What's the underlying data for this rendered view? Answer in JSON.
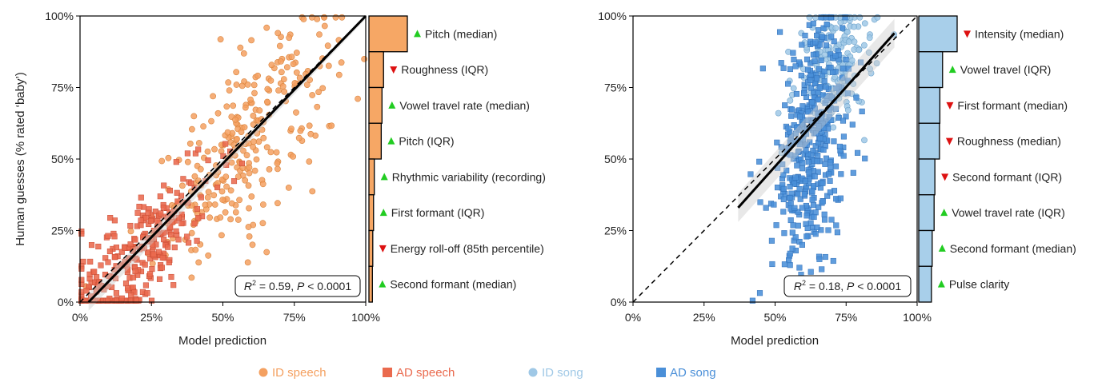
{
  "chart_data": [
    {
      "type": "scatter",
      "xlabel": "Model prediction",
      "ylabel": "Human guesses (% rated ‘baby’)",
      "xlim": [
        0,
        100
      ],
      "ylim": [
        0,
        100
      ],
      "x_ticks": [
        "0%",
        "25%",
        "50%",
        "75%",
        "100%"
      ],
      "y_ticks": [
        "0%",
        "25%",
        "50%",
        "75%",
        "100%"
      ],
      "identity_line": true,
      "fit_line": {
        "x": [
          3,
          100
        ],
        "y": [
          0,
          102
        ]
      },
      "stat": {
        "r2_label": "R",
        "r2_value": "= 0.59,",
        "p_label": "P",
        "p_value": "< 0.0001"
      },
      "series": [
        {
          "name": "ID speech",
          "marker": "circle",
          "color": "#f4a060",
          "stroke": "#d9843d",
          "x_mean": 58,
          "x_sd": 16,
          "slope": 1.0,
          "intercept": -2,
          "noise": 15,
          "count": 280
        },
        {
          "name": "AD speech",
          "marker": "square",
          "color": "#ea6a4e",
          "stroke": "#c84b32",
          "x_mean": 22,
          "x_sd": 13,
          "slope": 0.9,
          "intercept": -3,
          "noise": 10,
          "count": 300
        }
      ],
      "features": [
        {
          "label": "Pitch (median)",
          "direction": "up",
          "importance": 1.0
        },
        {
          "label": "Roughness (IQR)",
          "direction": "down",
          "importance": 0.38
        },
        {
          "label": "Vowel travel rate (median)",
          "direction": "up",
          "importance": 0.34
        },
        {
          "label": "Pitch (IQR)",
          "direction": "up",
          "importance": 0.32
        },
        {
          "label": "Rhythmic variability (recording)",
          "direction": "up",
          "importance": 0.14
        },
        {
          "label": "First formant (IQR)",
          "direction": "up",
          "importance": 0.12
        },
        {
          "label": "Energy roll-off (85th percentile)",
          "direction": "down",
          "importance": 0.1
        },
        {
          "label": "Second formant (median)",
          "direction": "up",
          "importance": 0.09
        }
      ]
    },
    {
      "type": "scatter",
      "xlabel": "Model prediction",
      "ylabel": "",
      "xlim": [
        0,
        100
      ],
      "ylim": [
        0,
        100
      ],
      "x_ticks": [
        "0%",
        "25%",
        "50%",
        "75%",
        "100%"
      ],
      "y_ticks": [
        "0%",
        "25%",
        "50%",
        "75%",
        "100%"
      ],
      "identity_line": true,
      "fit_line": {
        "x": [
          37,
          92
        ],
        "y": [
          33,
          94
        ]
      },
      "stat": {
        "r2_label": "R",
        "r2_value": "= 0.18,",
        "p_label": "P",
        "p_value": "< 0.0001"
      },
      "series": [
        {
          "name": "ID song",
          "marker": "circle",
          "color": "#9fc8e6",
          "stroke": "#6fa4cc",
          "x_mean": 70,
          "x_sd": 6,
          "slope": 0.5,
          "intercept": 50,
          "noise": 11,
          "count": 200
        },
        {
          "name": "AD song",
          "marker": "square",
          "color": "#4a8fd8",
          "stroke": "#2f6fb8",
          "x_mean": 62,
          "x_sd": 7,
          "slope": 1.2,
          "intercept": -20,
          "noise": 20,
          "count": 420
        }
      ],
      "features": [
        {
          "label": "Intensity (median)",
          "direction": "down",
          "importance": 1.0
        },
        {
          "label": "Vowel travel (IQR)",
          "direction": "up",
          "importance": 0.62
        },
        {
          "label": "First formant (median)",
          "direction": "down",
          "importance": 0.55
        },
        {
          "label": "Roughness (median)",
          "direction": "down",
          "importance": 0.54
        },
        {
          "label": "Second formant (IQR)",
          "direction": "down",
          "importance": 0.42
        },
        {
          "label": "Vowel travel rate (IQR)",
          "direction": "up",
          "importance": 0.4
        },
        {
          "label": "Second formant (median)",
          "direction": "up",
          "importance": 0.35
        },
        {
          "label": "Pulse clarity",
          "direction": "up",
          "importance": 0.33
        }
      ]
    }
  ],
  "legend": [
    {
      "label": "ID speech",
      "marker": "circle",
      "color": "#f4a060"
    },
    {
      "label": "AD speech",
      "marker": "square",
      "color": "#ea6a4e"
    },
    {
      "label": "ID song",
      "marker": "circle",
      "color": "#9fc8e6"
    },
    {
      "label": "AD song",
      "marker": "square",
      "color": "#4a8fd8"
    }
  ],
  "colors": {
    "up_arrow": "#22cc22",
    "down_arrow": "#dd1111",
    "speech_bar": "#f6a765",
    "song_bar": "#a8cfea"
  }
}
